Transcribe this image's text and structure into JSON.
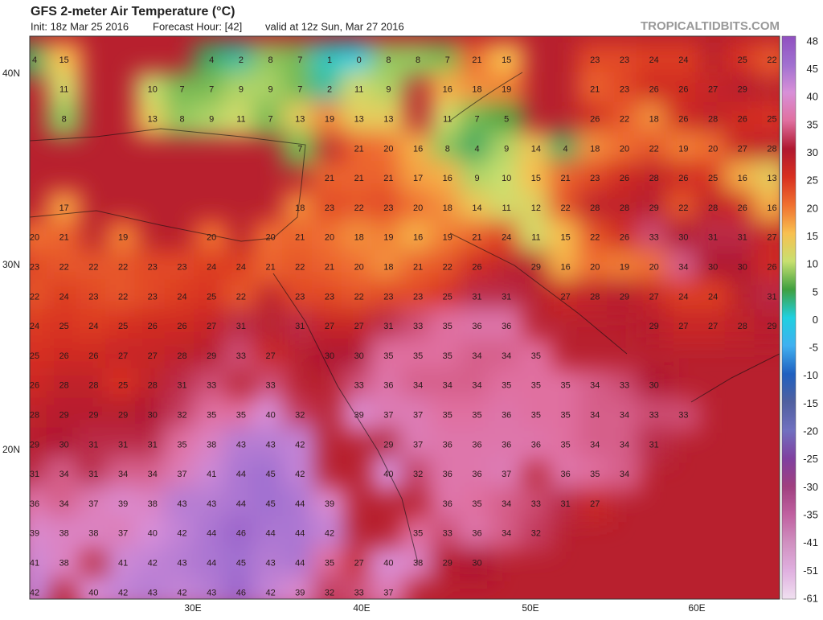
{
  "map": {
    "title": "GFS 2-meter Air Temperature (°C)",
    "init": "Init: 18z Mar 25 2016",
    "forecast_hour": "Forecast Hour: [42]",
    "valid": "valid at 12z Sun, Mar 27 2016",
    "source": "TROPICALTIDBITS.COM",
    "lat_labels": [
      "40N",
      "30N",
      "20N"
    ],
    "lon_labels": [
      "30E",
      "40E",
      "50E",
      "60E"
    ],
    "base_color": "#b8202e",
    "rows": [
      [
        4,
        15,
        null,
        null,
        null,
        null,
        4,
        2,
        8,
        7,
        1,
        0,
        8,
        8,
        7,
        21,
        15,
        null,
        null,
        23,
        23,
        24,
        24,
        null,
        25,
        22
      ],
      [
        null,
        11,
        null,
        null,
        10,
        7,
        7,
        9,
        9,
        7,
        2,
        11,
        9,
        null,
        16,
        18,
        19,
        null,
        null,
        21,
        23,
        26,
        26,
        27,
        29,
        null
      ],
      [
        null,
        8,
        null,
        null,
        13,
        8,
        9,
        11,
        7,
        13,
        19,
        13,
        13,
        null,
        11,
        7,
        5,
        null,
        null,
        26,
        22,
        18,
        26,
        28,
        26,
        25
      ],
      [
        null,
        null,
        null,
        null,
        null,
        null,
        null,
        null,
        null,
        7,
        null,
        21,
        20,
        16,
        8,
        4,
        9,
        14,
        4,
        18,
        20,
        22,
        19,
        20,
        27,
        28
      ],
      [
        null,
        null,
        null,
        null,
        null,
        null,
        null,
        null,
        null,
        null,
        21,
        21,
        21,
        17,
        16,
        9,
        10,
        15,
        21,
        23,
        26,
        28,
        26,
        25,
        16,
        13
      ],
      [
        null,
        17,
        null,
        null,
        null,
        null,
        null,
        null,
        null,
        18,
        23,
        22,
        23,
        20,
        18,
        14,
        11,
        12,
        22,
        28,
        28,
        29,
        22,
        28,
        26,
        16
      ],
      [
        20,
        21,
        null,
        19,
        null,
        null,
        20,
        null,
        20,
        21,
        20,
        18,
        19,
        16,
        19,
        21,
        24,
        11,
        15,
        22,
        26,
        33,
        30,
        31,
        31,
        27
      ],
      [
        23,
        22,
        22,
        22,
        23,
        23,
        24,
        24,
        21,
        22,
        21,
        20,
        18,
        21,
        22,
        26,
        null,
        29,
        16,
        20,
        19,
        20,
        34,
        30,
        30,
        26
      ],
      [
        22,
        24,
        23,
        22,
        23,
        24,
        25,
        22,
        null,
        23,
        23,
        22,
        23,
        23,
        25,
        31,
        31,
        null,
        27,
        28,
        29,
        27,
        24,
        24,
        null,
        31
      ],
      [
        24,
        25,
        24,
        25,
        26,
        26,
        27,
        31,
        null,
        31,
        27,
        27,
        31,
        33,
        35,
        36,
        36,
        null,
        null,
        null,
        null,
        29,
        27,
        27,
        28,
        29
      ],
      [
        25,
        26,
        26,
        27,
        27,
        28,
        29,
        33,
        27,
        null,
        30,
        30,
        35,
        35,
        35,
        34,
        34,
        35,
        null,
        null,
        null,
        null,
        null,
        null,
        null,
        null
      ],
      [
        26,
        28,
        28,
        25,
        28,
        31,
        33,
        null,
        33,
        null,
        null,
        33,
        36,
        34,
        34,
        34,
        35,
        35,
        35,
        34,
        33,
        30,
        null,
        null,
        null,
        null
      ],
      [
        28,
        29,
        29,
        29,
        30,
        32,
        35,
        35,
        40,
        32,
        null,
        39,
        37,
        37,
        35,
        35,
        36,
        35,
        35,
        34,
        34,
        33,
        33,
        null,
        null,
        null
      ],
      [
        29,
        30,
        31,
        31,
        31,
        35,
        38,
        43,
        43,
        42,
        null,
        null,
        29,
        37,
        36,
        36,
        36,
        36,
        35,
        34,
        34,
        31,
        null,
        null,
        null,
        null
      ],
      [
        31,
        34,
        31,
        34,
        34,
        37,
        41,
        44,
        45,
        42,
        null,
        null,
        40,
        32,
        36,
        36,
        37,
        null,
        36,
        35,
        34,
        null,
        null,
        null,
        null,
        null
      ],
      [
        36,
        34,
        37,
        39,
        38,
        43,
        43,
        44,
        45,
        44,
        39,
        null,
        null,
        null,
        36,
        35,
        34,
        33,
        31,
        27,
        null,
        null,
        null,
        null,
        null,
        null
      ],
      [
        39,
        38,
        38,
        37,
        40,
        42,
        44,
        46,
        44,
        44,
        42,
        null,
        null,
        35,
        33,
        36,
        34,
        32,
        null,
        null,
        null,
        null,
        null,
        null,
        null,
        null
      ],
      [
        41,
        38,
        null,
        41,
        42,
        43,
        44,
        45,
        43,
        44,
        35,
        27,
        40,
        38,
        29,
        30,
        null,
        null,
        null,
        null,
        null,
        null,
        null,
        null,
        null,
        null
      ],
      [
        42,
        null,
        40,
        42,
        43,
        42,
        43,
        46,
        42,
        39,
        32,
        33,
        37,
        null,
        null,
        null,
        null,
        null,
        null,
        null,
        null,
        null,
        null,
        null,
        null,
        null
      ]
    ]
  },
  "colorbar": {
    "labels": [
      48,
      45,
      40,
      35,
      30,
      25,
      20,
      15,
      10,
      5,
      0,
      -5,
      -10,
      -15,
      -20,
      -25,
      -30,
      -35,
      -41,
      -51,
      -61
    ],
    "colors": [
      "#9050c0",
      "#a070d0",
      "#d890d8",
      "#e070a0",
      "#b01830",
      "#d83020",
      "#f07030",
      "#f8c050",
      "#c8e070",
      "#40a040",
      "#20d0e0",
      "#40b0f0",
      "#2060c0",
      "#5060a0",
      "#7070c0",
      "#8040a0",
      "#a04080",
      "#c060a0",
      "#d090c0",
      "#e0b0e0",
      "#f0e0f0"
    ]
  }
}
